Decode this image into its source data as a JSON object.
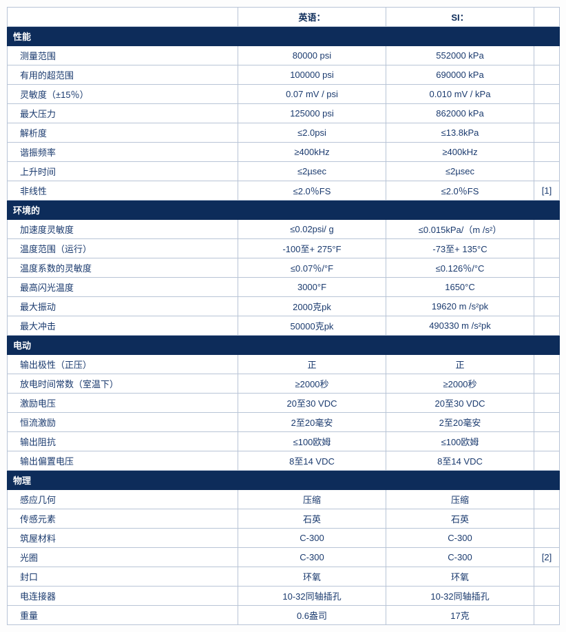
{
  "headers": {
    "english": "英语：",
    "si": "SI："
  },
  "colors": {
    "section_bg": "#0d2c5a",
    "section_text": "#ffffff",
    "border": "#b8c4d6",
    "text": "#1a3a6e",
    "row_bg": "#ffffff"
  },
  "typography": {
    "font_family": "Microsoft YaHei",
    "font_size_pt": 10
  },
  "columns": {
    "label_width": 335,
    "english_width": 215,
    "si_width": 215,
    "note_width": 37
  },
  "sections": [
    {
      "title": "性能",
      "rows": [
        {
          "label": "测量范围",
          "english": "80000 psi",
          "si": "552000 kPa",
          "note": ""
        },
        {
          "label": "有用的超范围",
          "english": "100000 psi",
          "si": "690000 kPa",
          "note": ""
        },
        {
          "label": "灵敏度（±15％）",
          "english": "0.07 mV / psi",
          "si": "0.010 mV / kPa",
          "note": ""
        },
        {
          "label": "最大压力",
          "english": "125000 psi",
          "si": "862000 kPa",
          "note": ""
        },
        {
          "label": "解析度",
          "english": "≤2.0psi",
          "si": "≤13.8kPa",
          "note": ""
        },
        {
          "label": "谐振频率",
          "english": "≥400kHz",
          "si": "≥400kHz",
          "note": ""
        },
        {
          "label": "上升时间",
          "english": "≤2µsec",
          "si": "≤2µsec",
          "note": ""
        },
        {
          "label": "非线性",
          "english": "≤2.0％FS",
          "si": "≤2.0％FS",
          "note": "[1]"
        }
      ]
    },
    {
      "title": "环境的",
      "rows": [
        {
          "label": "加速度灵敏度",
          "english": "≤0.02psi/ g",
          "si": "≤0.015kPa/（m /s²）",
          "note": ""
        },
        {
          "label": "温度范围（运行）",
          "english": "-100至+ 275°F",
          "si": "-73至+ 135°C",
          "note": ""
        },
        {
          "label": "温度系数的灵敏度",
          "english": "≤0.07％/°F",
          "si": "≤0.126％/°C",
          "note": ""
        },
        {
          "label": "最高闪光温度",
          "english": "3000°F",
          "si": "1650°C",
          "note": ""
        },
        {
          "label": "最大振动",
          "english": "2000克pk",
          "si": "19620 m /s²pk",
          "note": ""
        },
        {
          "label": "最大冲击",
          "english": "50000克pk",
          "si": "490330 m /s²pk",
          "note": ""
        }
      ]
    },
    {
      "title": "电动",
      "rows": [
        {
          "label": "输出极性（正压）",
          "english": "正",
          "si": "正",
          "note": ""
        },
        {
          "label": "放电时间常数（室温下）",
          "english": "≥2000秒",
          "si": "≥2000秒",
          "note": ""
        },
        {
          "label": "激励电压",
          "english": "20至30 VDC",
          "si": "20至30 VDC",
          "note": ""
        },
        {
          "label": "恒流激励",
          "english": "2至20毫安",
          "si": "2至20毫安",
          "note": ""
        },
        {
          "label": "输出阻抗",
          "english": "≤100欧姆",
          "si": "≤100欧姆",
          "note": ""
        },
        {
          "label": "输出偏置电压",
          "english": "8至14 VDC",
          "si": "8至14 VDC",
          "note": ""
        }
      ]
    },
    {
      "title": "物理",
      "rows": [
        {
          "label": "感应几何",
          "english": "压缩",
          "si": "压缩",
          "note": ""
        },
        {
          "label": "传感元素",
          "english": "石英",
          "si": "石英",
          "note": ""
        },
        {
          "label": "筑屋材料",
          "english": "C-300",
          "si": "C-300",
          "note": ""
        },
        {
          "label": "光圈",
          "english": "C-300",
          "si": "C-300",
          "note": "[2]"
        },
        {
          "label": "封口",
          "english": "环氧",
          "si": "环氧",
          "note": ""
        },
        {
          "label": "电连接器",
          "english": "10-32同轴插孔",
          "si": "10-32同轴插孔",
          "note": ""
        },
        {
          "label": "重量",
          "english": "0.6盎司",
          "si": "17克",
          "note": ""
        }
      ]
    }
  ]
}
